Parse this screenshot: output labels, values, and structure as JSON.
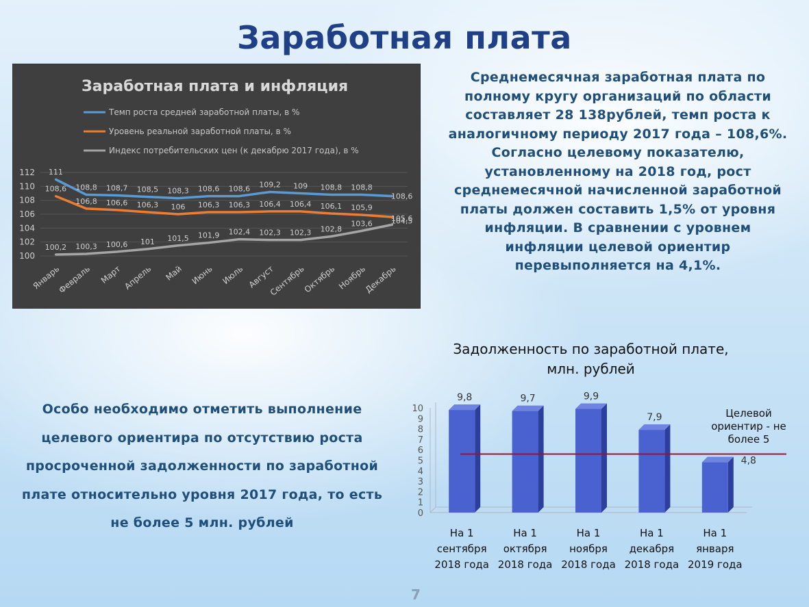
{
  "slide": {
    "title": "Заработная плата",
    "page_number": "7",
    "right_text": "Среднемесячная заработная плата по полному кругу организаций по области составляет 28 138рублей, темп роста к аналогичному периоду 2017 года – 108,6%. Согласно целевому показателю, установленному на 2018 год, рост среднемесячной начисленной заработной платы должен составить 1,5% от уровня инфляции. В сравнении с уровнем инфляции целевой ориентир перевыполняется на 4,1%.",
    "left_text": "Особо необходимо отметить выполнение целевого ориентира по отсутствию роста просроченной задолженности по заработной плате относительно уровня 2017 года, то есть не более 5 млн. рублей"
  },
  "chart_data": [
    {
      "type": "line",
      "title": "Заработная плата и инфляция",
      "categories": [
        "Январь",
        "Февраль",
        "Март",
        "Апрель",
        "Май",
        "Июнь",
        "Июль",
        "Август",
        "Сентябрь",
        "Октябрь",
        "Ноябрь",
        "Декабрь"
      ],
      "series": [
        {
          "name": "Темп роста средней заработной платы, в %",
          "color": "#5b9bd5",
          "values": [
            111,
            108.8,
            108.7,
            108.5,
            108.3,
            108.6,
            108.6,
            109.2,
            109,
            108.8,
            108.8,
            108.6
          ],
          "labels": [
            "111",
            "108,8",
            "108,7",
            "108,5",
            "108,3",
            "108,6",
            "108,6",
            "109,2",
            "109",
            "108,8",
            "108,8",
            "108,6"
          ]
        },
        {
          "name": "Уровень реальной заработной платы, в %",
          "color": "#ed7d31",
          "values": [
            108.6,
            106.8,
            106.6,
            106.3,
            106,
            106.3,
            106.3,
            106.4,
            106.4,
            106.1,
            105.9,
            105.6
          ],
          "labels": [
            "108,6",
            "106,8",
            "106,6",
            "106,3",
            "106",
            "106,3",
            "106,3",
            "106,4",
            "106,4",
            "106,1",
            "105,9",
            "105,6"
          ]
        },
        {
          "name": "Индекс потребительских цен (к декабрю 2017 года), в %",
          "color": "#a5a5a5",
          "values": [
            100.2,
            100.3,
            100.6,
            101,
            101.5,
            101.9,
            102.4,
            102.3,
            102.3,
            102.8,
            103.6,
            104.5
          ],
          "labels": [
            "100,2",
            "100,3",
            "100,6",
            "101",
            "101,5",
            "101,9",
            "102,4",
            "102,3",
            "102,3",
            "102,8",
            "103,6",
            "104,5"
          ]
        }
      ],
      "y_ticks": [
        "100",
        "102",
        "104",
        "106",
        "108",
        "110",
        "112"
      ],
      "ylim": [
        100,
        112
      ],
      "grid": true,
      "legend": "top-left"
    },
    {
      "type": "bar",
      "title_line1": "Задолженность по заработной плате,",
      "title_line2": "млн. рублей",
      "categories": [
        [
          "На 1",
          "сентября",
          "2018 года"
        ],
        [
          "На 1",
          "октября",
          "2018 года"
        ],
        [
          "На 1",
          "ноября",
          "2018 года"
        ],
        [
          "На 1",
          "декабря",
          "2018 года"
        ],
        [
          "На 1",
          "января",
          "2019 года"
        ]
      ],
      "values": [
        9.8,
        9.7,
        9.9,
        7.9,
        4.8
      ],
      "value_labels": [
        "9,8",
        "9,7",
        "9,9",
        "7,9",
        "4,8"
      ],
      "y_ticks": [
        "0",
        "1",
        "2",
        "3",
        "4",
        "5",
        "6",
        "7",
        "8",
        "9",
        "10"
      ],
      "ylim": [
        0,
        10
      ],
      "bar_color": "#4a62cf",
      "target_line_color": "#a0102a",
      "target_note": [
        "Целевой",
        "ориентир - не",
        "более 5"
      ]
    }
  ]
}
